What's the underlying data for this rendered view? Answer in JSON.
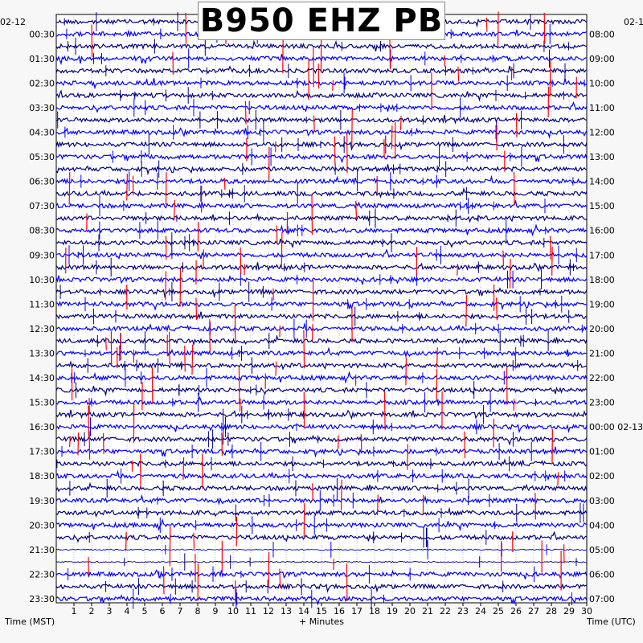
{
  "chart_data": {
    "type": "helicorder",
    "title": "B950 EHZ PB",
    "date_left": "02-12",
    "date_right": "02-1",
    "date_right_marker": "02-13",
    "xlabel": "+ Minutes",
    "left_axis_label": "Time (MST)",
    "right_axis_label": "Time (UTC)",
    "x_ticks": [
      "1",
      "2",
      "3",
      "4",
      "5",
      "6",
      "7",
      "8",
      "9",
      "10",
      "11",
      "12",
      "13",
      "14",
      "15",
      "16",
      "17",
      "18",
      "19",
      "20",
      "21",
      "22",
      "23",
      "24",
      "25",
      "26",
      "27",
      "28",
      "29",
      "30"
    ],
    "xlim": [
      0,
      30
    ],
    "left_times": [
      "00:30",
      "01:30",
      "02:30",
      "03:30",
      "04:30",
      "05:30",
      "06:30",
      "07:30",
      "08:30",
      "09:30",
      "10:30",
      "11:30",
      "12:30",
      "13:30",
      "14:30",
      "15:30",
      "16:30",
      "17:30",
      "18:30",
      "19:30",
      "20:30",
      "21:30",
      "22:30",
      "23:30"
    ],
    "right_times": [
      "08:00",
      "09:00",
      "10:00",
      "11:00",
      "12:00",
      "13:00",
      "14:00",
      "15:00",
      "16:00",
      "17:00",
      "18:00",
      "19:00",
      "20:00",
      "21:00",
      "22:00",
      "23:00",
      "00:00",
      "01:00",
      "02:00",
      "03:00",
      "04:00",
      "05:00",
      "06:00",
      "07:00"
    ],
    "trace_colors": [
      "#000080",
      "#0000ff"
    ],
    "event_color": "#ff0000",
    "trace_lines_per_hour": 2,
    "grid": true
  }
}
